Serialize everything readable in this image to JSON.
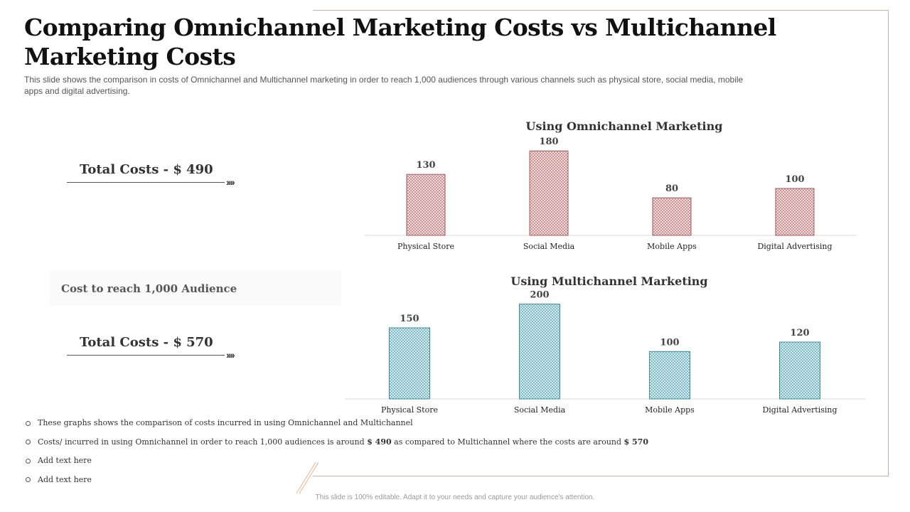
{
  "slide": {
    "title": "Comparing Omnichannel Marketing Costs vs Multichannel Marketing Costs",
    "subtitle": "This slide shows the comparison in costs of Omnichannel and Multichannel marketing in order to reach 1,000 audiences through various channels such as physical store, social media, mobile apps and digital advertising.",
    "total_omni": "Total Costs - $ 490",
    "total_multi": "Total Costs - $ 570",
    "arrow_glyph": "››››",
    "cost_label": "Cost to reach 1,000 Audience",
    "bullets": {
      "b1": "These graphs shows the comparison of costs incurred in using Omnichannel and Multichannel",
      "b2_pre": "Costs/ incurred in using Omnichannel in order to reach 1,000 audiences is around ",
      "b2_v1": "$ 490",
      "b2_mid": " as compared to Multichannel where the costs are around ",
      "b2_v2": "$ 570",
      "b3": "Add text here",
      "b4": "Add text here"
    },
    "footer": "This slide is 100% editable. Adapt it to your needs and capture your audience's attention."
  },
  "colors": {
    "omni_stroke": "#a05a5a",
    "omni_fill": "#c98f8f",
    "multi_stroke": "#3b8c9a",
    "multi_fill": "#7fb7c2"
  },
  "chart_data": [
    {
      "type": "bar",
      "title": "Using Omnichannel Marketing",
      "categories": [
        "Physical Store",
        "Social Media",
        "Mobile Apps",
        "Digital Advertising"
      ],
      "values": [
        130,
        180,
        80,
        100
      ],
      "ylim": [
        0,
        200
      ],
      "xlabel": "",
      "ylabel": ""
    },
    {
      "type": "bar",
      "title": "Using Multichannel Marketing",
      "categories": [
        "Physical Store",
        "Social Media",
        "Mobile Apps",
        "Digital Advertising"
      ],
      "values": [
        150,
        200,
        100,
        120
      ],
      "ylim": [
        0,
        210
      ],
      "xlabel": "",
      "ylabel": ""
    }
  ]
}
